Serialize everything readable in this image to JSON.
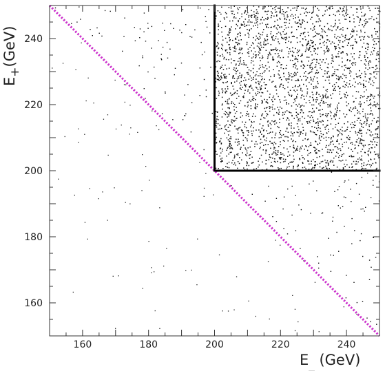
{
  "chart_data": {
    "type": "scatter",
    "title": "",
    "xlabel": "E_ (GeV)",
    "ylabel": "E+(GeV)",
    "xlim": [
      150,
      250
    ],
    "ylim": [
      150,
      250
    ],
    "x_ticks": [
      160,
      180,
      200,
      220,
      240
    ],
    "y_ticks": [
      160,
      180,
      200,
      220,
      240
    ],
    "grid": false,
    "series": [
      {
        "kind": "scatter-cloud",
        "description_regions": [
          {
            "x": [
              200,
              250
            ],
            "y": [
              200,
              250
            ],
            "relative_density": 1.0
          },
          {
            "x": [
              150,
              250
            ],
            "y": [
              150,
              250
            ],
            "relative_density": 0.08
          }
        ],
        "approx_points_shown": 4000,
        "color": "#111111"
      },
      {
        "kind": "diagonal-line",
        "style": "dotted",
        "color": "#cc33cc",
        "x": [
          150,
          250
        ],
        "y": [
          250,
          150
        ]
      },
      {
        "kind": "cut-lines",
        "color": "#000000",
        "segments": [
          {
            "x": [
              200,
              200
            ],
            "y": [
              200,
              250
            ]
          },
          {
            "x": [
              200,
              250
            ],
            "y": [
              200,
              200
            ]
          }
        ]
      }
    ]
  }
}
